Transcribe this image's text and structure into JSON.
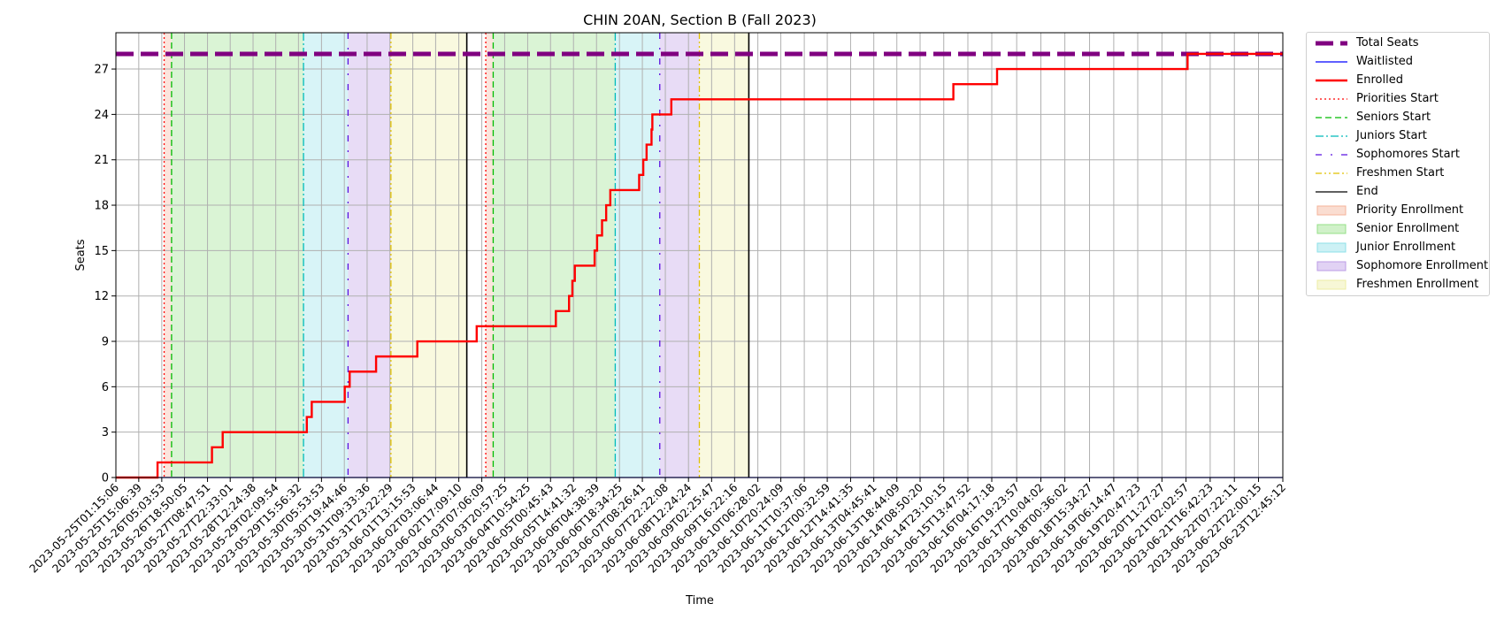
{
  "chart_data": {
    "type": "line",
    "title": "CHIN 20AN, Section B (Fall 2023)",
    "xlabel": "Time",
    "ylabel": "Seats",
    "ylim": [
      0,
      29.4
    ],
    "yticks": [
      0,
      3,
      6,
      9,
      12,
      15,
      18,
      21,
      24,
      27
    ],
    "grid": true,
    "legend_position": "outside-right",
    "xlim": [
      "2023-05-25T01:15:06",
      "2023-06-23T12:45:12"
    ],
    "xtick_labels": [
      "2023-05-25T01:15:06",
      "2023-05-25T15:06:39",
      "2023-05-26T05:03:53",
      "2023-05-26T18:50:05",
      "2023-05-27T08:47:51",
      "2023-05-27T22:33:01",
      "2023-05-28T12:24:38",
      "2023-05-29T02:09:54",
      "2023-05-29T15:56:32",
      "2023-05-30T05:53:53",
      "2023-05-30T19:44:46",
      "2023-05-31T09:33:36",
      "2023-05-31T23:22:29",
      "2023-06-01T13:15:53",
      "2023-06-02T03:06:44",
      "2023-06-02T17:09:10",
      "2023-06-03T07:06:09",
      "2023-06-03T20:57:25",
      "2023-06-04T10:54:25",
      "2023-06-05T00:45:43",
      "2023-06-05T14:41:32",
      "2023-06-06T04:38:39",
      "2023-06-06T18:34:25",
      "2023-06-07T08:26:41",
      "2023-06-07T22:22:08",
      "2023-06-08T12:24:24",
      "2023-06-09T02:25:47",
      "2023-06-09T16:22:16",
      "2023-06-10T06:28:02",
      "2023-06-10T20:24:09",
      "2023-06-11T10:37:06",
      "2023-06-12T00:32:59",
      "2023-06-12T14:41:35",
      "2023-06-13T04:45:41",
      "2023-06-13T18:44:09",
      "2023-06-14T08:50:20",
      "2023-06-14T23:10:15",
      "2023-06-15T13:47:52",
      "2023-06-16T04:17:18",
      "2023-06-16T19:23:57",
      "2023-06-17T10:04:02",
      "2023-06-18T00:36:02",
      "2023-06-18T15:34:27",
      "2023-06-19T06:14:47",
      "2023-06-19T20:47:23",
      "2023-06-20T11:27:27",
      "2023-06-21T02:02:57",
      "2023-06-21T16:42:23",
      "2023-06-22T07:22:11",
      "2023-06-22T22:00:15",
      "2023-06-23T12:45:12"
    ],
    "total_seats": 28,
    "series": [
      {
        "name": "Total Seats",
        "style": "dashed-thick",
        "color": "#800080",
        "x": [
          "2023-05-25T01:15:06",
          "2023-06-23T12:45:12"
        ],
        "y": [
          28,
          28
        ]
      },
      {
        "name": "Waitlisted",
        "style": "solid",
        "color": "#0000ff",
        "x": [
          "2023-05-25T01:15:06",
          "2023-06-23T12:45:12"
        ],
        "y": [
          0,
          0
        ]
      },
      {
        "name": "Enrolled",
        "style": "step",
        "color": "#ff0000",
        "x": [
          "2023-05-25T01:15:06",
          "2023-05-26T02:30:00",
          "2023-05-26T11:00:00",
          "2023-05-27T11:30:00",
          "2023-05-27T18:00:00",
          "2023-05-29T21:00:00",
          "2023-05-30T00:00:00",
          "2023-05-30T06:00:00",
          "2023-05-30T20:00:00",
          "2023-05-30T23:00:00",
          "2023-05-31T15:00:00",
          "2023-06-01T16:00:00",
          "2023-06-03T04:00:00",
          "2023-06-04T04:30:00",
          "2023-06-05T04:00:00",
          "2023-06-05T12:00:00",
          "2023-06-05T14:00:00",
          "2023-06-05T15:30:00",
          "2023-06-06T03:30:00",
          "2023-06-06T05:00:00",
          "2023-06-06T08:00:00",
          "2023-06-06T10:30:00",
          "2023-06-06T13:00:00",
          "2023-06-07T06:30:00",
          "2023-06-07T09:00:00",
          "2023-06-07T11:00:00",
          "2023-06-07T14:00:00",
          "2023-06-07T14:30:00",
          "2023-06-08T02:00:00",
          "2023-06-15T05:00:00",
          "2023-06-16T07:30:00",
          "2023-06-21T03:00:00",
          "2023-06-23T12:45:12"
        ],
        "y": [
          0,
          1,
          1,
          2,
          3,
          4,
          5,
          5,
          6,
          7,
          8,
          9,
          10,
          10,
          11,
          12,
          13,
          14,
          15,
          16,
          17,
          18,
          19,
          20,
          21,
          22,
          23,
          24,
          25,
          26,
          27,
          28,
          28
        ]
      }
    ],
    "vertical_markers": [
      {
        "name": "Priorities Start",
        "style": "dotted",
        "color": "#ff0000",
        "x": [
          "2023-05-26T06:30:00",
          "2023-06-03T09:30:00"
        ]
      },
      {
        "name": "Seniors Start",
        "style": "dashed",
        "color": "#00bb00",
        "x": [
          "2023-05-26T11:00:00",
          "2023-06-03T14:00:00"
        ]
      },
      {
        "name": "Juniors Start",
        "style": "dashdot",
        "color": "#00bbbb",
        "x": [
          "2023-05-29T19:00:00",
          "2023-06-06T16:00:00"
        ]
      },
      {
        "name": "Sophomores Start",
        "style": "dashdot-sparse",
        "color": "#5b12e0",
        "x": [
          "2023-05-30T22:00:00",
          "2023-06-07T19:00:00"
        ]
      },
      {
        "name": "Freshmen Start",
        "style": "dashdotdot",
        "color": "#e0c000",
        "x": [
          "2023-06-01T00:00:00",
          "2023-06-08T19:00:00"
        ]
      },
      {
        "name": "End",
        "style": "solid",
        "color": "#000000",
        "x": [
          "2023-06-02T22:00:00",
          "2023-06-10T01:00:00"
        ]
      }
    ],
    "shaded_regions": [
      {
        "name": "Priority Enrollment",
        "color": "#f5b39a",
        "spans": [
          [
            "2023-05-26T06:30:00",
            "2023-05-26T11:00:00"
          ],
          [
            "2023-06-03T09:30:00",
            "2023-06-03T14:00:00"
          ]
        ]
      },
      {
        "name": "Senior Enrollment",
        "color": "#96e088",
        "spans": [
          [
            "2023-05-26T11:00:00",
            "2023-05-29T19:00:00"
          ],
          [
            "2023-06-03T14:00:00",
            "2023-06-06T16:00:00"
          ]
        ]
      },
      {
        "name": "Junior Enrollment",
        "color": "#8ee0e8",
        "spans": [
          [
            "2023-05-29T19:00:00",
            "2023-05-30T22:00:00"
          ],
          [
            "2023-06-06T16:00:00",
            "2023-06-07T19:00:00"
          ]
        ]
      },
      {
        "name": "Sophomore Enrollment",
        "color": "#bc9ce6",
        "spans": [
          [
            "2023-05-30T22:00:00",
            "2023-06-01T00:00:00"
          ],
          [
            "2023-06-07T19:00:00",
            "2023-06-08T19:00:00"
          ]
        ]
      },
      {
        "name": "Freshmen Enrollment",
        "color": "#eeeea4",
        "spans": [
          [
            "2023-06-01T00:00:00",
            "2023-06-02T22:00:00"
          ],
          [
            "2023-06-08T19:00:00",
            "2023-06-10T01:00:00"
          ]
        ]
      }
    ],
    "legend": [
      {
        "label": "Total Seats",
        "kind": "line",
        "color": "#800080",
        "style": "dashed-thick"
      },
      {
        "label": "Waitlisted",
        "kind": "line",
        "color": "#0000ff",
        "style": "solid"
      },
      {
        "label": "Enrolled",
        "kind": "line",
        "color": "#ff0000",
        "style": "solid-thick"
      },
      {
        "label": "Priorities Start",
        "kind": "line",
        "color": "#ff0000",
        "style": "dotted"
      },
      {
        "label": "Seniors Start",
        "kind": "line",
        "color": "#00bb00",
        "style": "dashed"
      },
      {
        "label": "Juniors Start",
        "kind": "line",
        "color": "#00bbbb",
        "style": "dashdot"
      },
      {
        "label": "Sophomores Start",
        "kind": "line",
        "color": "#5b12e0",
        "style": "dashdot-sparse"
      },
      {
        "label": "Freshmen Start",
        "kind": "line",
        "color": "#e0c000",
        "style": "dashdotdot"
      },
      {
        "label": "End",
        "kind": "line",
        "color": "#000000",
        "style": "solid"
      },
      {
        "label": "Priority Enrollment",
        "kind": "patch",
        "color": "#f5b39a"
      },
      {
        "label": "Senior Enrollment",
        "kind": "patch",
        "color": "#96e088"
      },
      {
        "label": "Junior Enrollment",
        "kind": "patch",
        "color": "#8ee0e8"
      },
      {
        "label": "Sophomore Enrollment",
        "kind": "patch",
        "color": "#bc9ce6"
      },
      {
        "label": "Freshmen Enrollment",
        "kind": "patch",
        "color": "#eeeea4"
      }
    ]
  }
}
